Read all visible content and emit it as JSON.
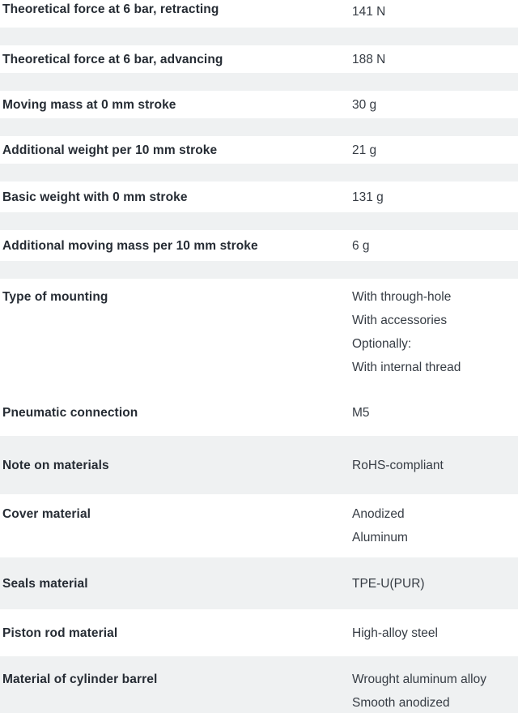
{
  "colors": {
    "row_bg": "#ffffff",
    "shaded_row_bg": "#eff1f2",
    "label_text": "#262c34",
    "value_text": "#363c44"
  },
  "spec_table": {
    "rows": [
      {
        "label": "Theoretical force at 6 bar, retracting",
        "values": [
          "141 N"
        ],
        "shaded": false,
        "separator_after": true
      },
      {
        "label": "Theoretical force at 6 bar, advancing",
        "values": [
          "188 N"
        ],
        "shaded": false,
        "separator_after": true
      },
      {
        "label": "Moving mass at 0 mm stroke",
        "values": [
          "30 g"
        ],
        "shaded": false,
        "separator_after": true
      },
      {
        "label": "Additional weight per 10 mm stroke",
        "values": [
          "21 g"
        ],
        "shaded": false,
        "separator_after": true
      },
      {
        "label": "Basic weight with 0 mm stroke",
        "values": [
          "131 g"
        ],
        "shaded": false,
        "separator_after": true
      },
      {
        "label": "Additional moving mass per 10 mm stroke",
        "values": [
          "6 g"
        ],
        "shaded": false,
        "separator_after": true
      },
      {
        "label": "Type of mounting",
        "values": [
          "With through-hole",
          "With accessories",
          "Optionally:",
          "With internal thread"
        ],
        "shaded": false,
        "separator_after": false
      },
      {
        "label": "Pneumatic connection",
        "values": [
          "M5"
        ],
        "shaded": false,
        "separator_after": false
      },
      {
        "label": "Note on materials",
        "values": [
          "RoHS-compliant"
        ],
        "shaded": true,
        "separator_after": false
      },
      {
        "label": "Cover material",
        "values": [
          "Anodized",
          "Aluminum"
        ],
        "shaded": false,
        "separator_after": false
      },
      {
        "label": "Seals material",
        "values": [
          "TPE-U(PUR)"
        ],
        "shaded": true,
        "separator_after": false
      },
      {
        "label": "Piston rod material",
        "values": [
          "High-alloy steel"
        ],
        "shaded": false,
        "separator_after": false
      },
      {
        "label": "Material of cylinder barrel",
        "values": [
          "Wrought aluminum alloy",
          "Smooth anodized"
        ],
        "shaded": true,
        "separator_after": false
      }
    ]
  }
}
